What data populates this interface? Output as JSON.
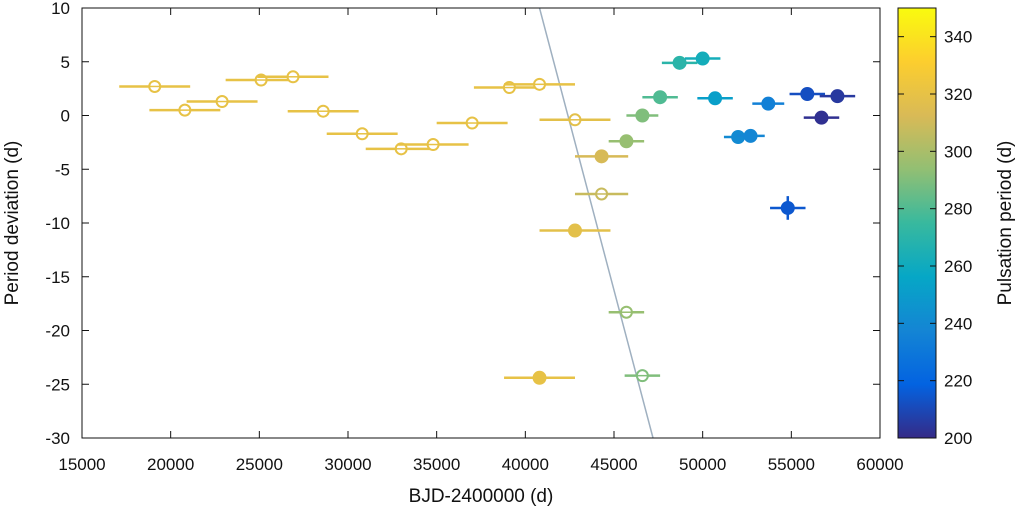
{
  "chart_data": {
    "type": "scatter",
    "xlabel": "BJD-2400000 (d)",
    "ylabel": "Period deviation (d)",
    "colorbar_label": "Pulsation period (d)",
    "xlim": [
      15000,
      60000
    ],
    "ylim": [
      -30,
      10
    ],
    "clim": [
      200,
      350
    ],
    "xticks": [
      "15000",
      "20000",
      "25000",
      "30000",
      "35000",
      "40000",
      "45000",
      "50000",
      "55000",
      "60000"
    ],
    "yticks": [
      "10",
      "5",
      "0",
      "-5",
      "-10",
      "-15",
      "-20",
      "-25",
      "-30"
    ],
    "cticks": [
      "340",
      "320",
      "300",
      "280",
      "260",
      "240",
      "220",
      "200"
    ],
    "colormap": [
      "#352a87",
      "#0363e1",
      "#1485d4",
      "#06a7c6",
      "#38b99e",
      "#92bf73",
      "#d9ba56",
      "#fcce2e",
      "#f9fb0e"
    ],
    "trend_line": {
      "x1": 40800,
      "y1": 10,
      "x2": 47200,
      "y2": -30,
      "color": "#9fb0c0"
    },
    "points": [
      {
        "x": 19100,
        "y": 2.7,
        "xerr": 2000,
        "yerr": 0,
        "period": 320,
        "filled": false
      },
      {
        "x": 20800,
        "y": 0.5,
        "xerr": 2000,
        "yerr": 0,
        "period": 320,
        "filled": false
      },
      {
        "x": 22900,
        "y": 1.3,
        "xerr": 2000,
        "yerr": 0,
        "period": 320,
        "filled": false
      },
      {
        "x": 25100,
        "y": 3.3,
        "xerr": 2000,
        "yerr": 0,
        "period": 320,
        "filled": false
      },
      {
        "x": 26900,
        "y": 3.6,
        "xerr": 2000,
        "yerr": 0,
        "period": 320,
        "filled": false
      },
      {
        "x": 28600,
        "y": 0.4,
        "xerr": 2000,
        "yerr": 0,
        "period": 320,
        "filled": false
      },
      {
        "x": 30800,
        "y": -1.7,
        "xerr": 2000,
        "yerr": 0,
        "period": 320,
        "filled": false
      },
      {
        "x": 33000,
        "y": -3.1,
        "xerr": 2000,
        "yerr": 0,
        "period": 320,
        "filled": false
      },
      {
        "x": 34800,
        "y": -2.7,
        "xerr": 2000,
        "yerr": 0,
        "period": 320,
        "filled": false
      },
      {
        "x": 37000,
        "y": -0.7,
        "xerr": 2000,
        "yerr": 0,
        "period": 320,
        "filled": false
      },
      {
        "x": 39100,
        "y": 2.6,
        "xerr": 2000,
        "yerr": 0,
        "period": 320,
        "filled": false
      },
      {
        "x": 40800,
        "y": 2.9,
        "xerr": 2000,
        "yerr": 0,
        "period": 320,
        "filled": false
      },
      {
        "x": 42800,
        "y": -0.4,
        "xerr": 2000,
        "yerr": 0,
        "period": 318,
        "filled": false
      },
      {
        "x": 44300,
        "y": -3.8,
        "xerr": 1500,
        "yerr": 0,
        "period": 312,
        "filled": true
      },
      {
        "x": 44300,
        "y": -7.3,
        "xerr": 1500,
        "yerr": 0,
        "period": 308,
        "filled": false
      },
      {
        "x": 42800,
        "y": -10.7,
        "xerr": 2000,
        "yerr": 0,
        "period": 318,
        "filled": true
      },
      {
        "x": 45700,
        "y": -2.4,
        "xerr": 1000,
        "yerr": 0,
        "period": 295,
        "filled": true
      },
      {
        "x": 45700,
        "y": -18.3,
        "xerr": 1000,
        "yerr": 0,
        "period": 295,
        "filled": false
      },
      {
        "x": 40800,
        "y": -24.4,
        "xerr": 2000,
        "yerr": 0,
        "period": 320,
        "filled": true
      },
      {
        "x": 46600,
        "y": -24.2,
        "xerr": 1000,
        "yerr": 0,
        "period": 290,
        "filled": false
      },
      {
        "x": 46600,
        "y": 0.0,
        "xerr": 900,
        "yerr": 0,
        "period": 290,
        "filled": true
      },
      {
        "x": 47600,
        "y": 1.7,
        "xerr": 1000,
        "yerr": 0,
        "period": 280,
        "filled": true
      },
      {
        "x": 48700,
        "y": 4.9,
        "xerr": 1000,
        "yerr": 0,
        "period": 270,
        "filled": true
      },
      {
        "x": 50000,
        "y": 5.3,
        "xerr": 1000,
        "yerr": 0,
        "period": 262,
        "filled": true
      },
      {
        "x": 50700,
        "y": 1.6,
        "xerr": 1000,
        "yerr": 0,
        "period": 252,
        "filled": true
      },
      {
        "x": 52000,
        "y": -2.0,
        "xerr": 800,
        "yerr": 0,
        "period": 240,
        "filled": true
      },
      {
        "x": 52700,
        "y": -1.9,
        "xerr": 800,
        "yerr": 0,
        "period": 238,
        "filled": true
      },
      {
        "x": 53700,
        "y": 1.1,
        "xerr": 900,
        "yerr": 0,
        "period": 235,
        "filled": true
      },
      {
        "x": 54800,
        "y": -8.6,
        "xerr": 1000,
        "yerr": 1.1,
        "period": 215,
        "filled": true
      },
      {
        "x": 55900,
        "y": 2.0,
        "xerr": 1000,
        "yerr": 0,
        "period": 212,
        "filled": true
      },
      {
        "x": 56700,
        "y": -0.2,
        "xerr": 1000,
        "yerr": 0,
        "period": 202,
        "filled": true
      },
      {
        "x": 57600,
        "y": 1.8,
        "xerr": 1000,
        "yerr": 0,
        "period": 205,
        "filled": true
      }
    ]
  }
}
